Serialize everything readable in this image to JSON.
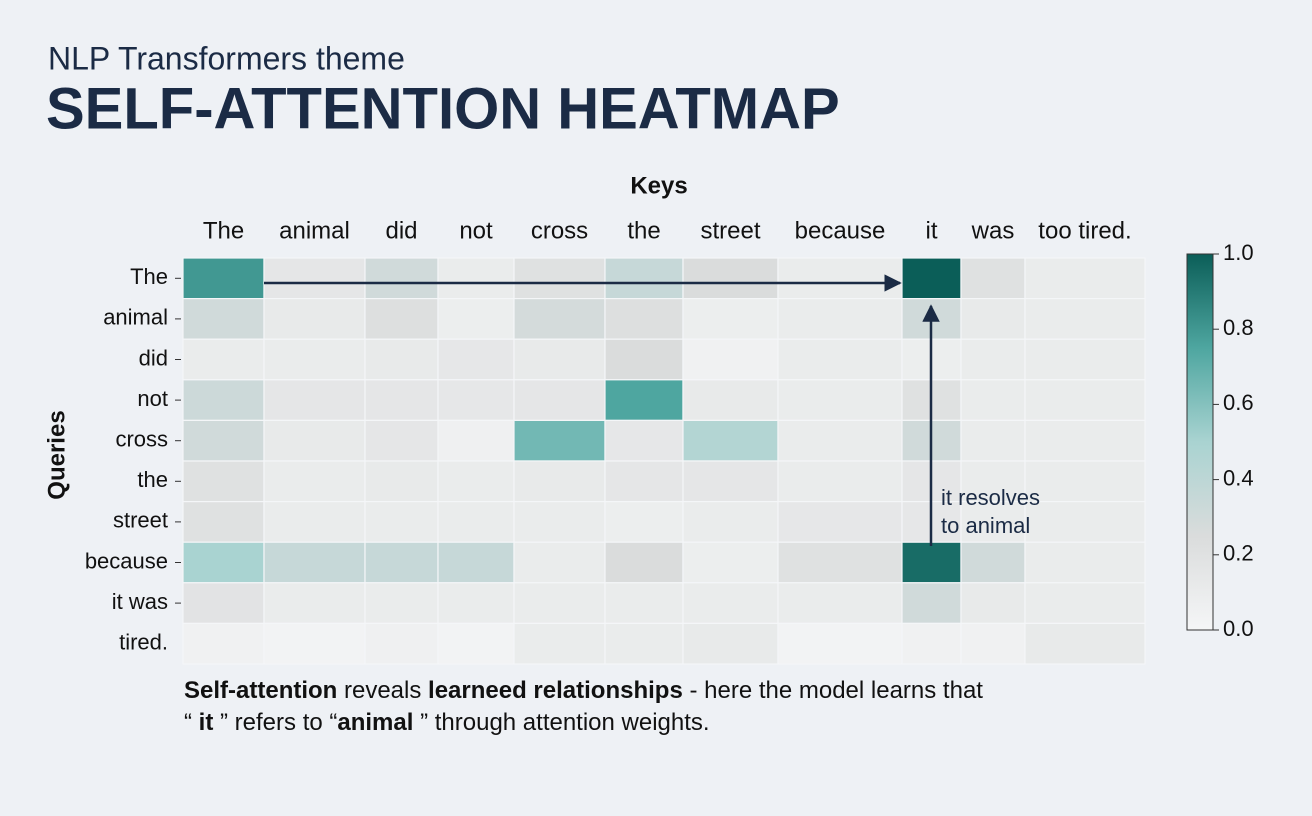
{
  "chart_data": {
    "type": "heatmap",
    "subtitle": "NLP Transformers theme",
    "title": "SELF-ATTENTION HEATMAP",
    "x_label": "Keys",
    "y_label": "Queries",
    "x_categories": [
      "The",
      "animal",
      "did",
      "not",
      "cross",
      "the",
      "street",
      "because",
      "it",
      "was",
      "too tired."
    ],
    "y_categories": [
      "The",
      "animal",
      "did",
      "not",
      "cross",
      "the",
      "street",
      "because",
      "it was",
      "tired."
    ],
    "values": [
      [
        0.8,
        0.15,
        0.3,
        0.1,
        0.2,
        0.35,
        0.25,
        0.1,
        1.0,
        0.2,
        0.1
      ],
      [
        0.3,
        0.12,
        0.22,
        0.08,
        0.28,
        0.22,
        0.08,
        0.1,
        0.3,
        0.12,
        0.1
      ],
      [
        0.1,
        0.1,
        0.12,
        0.14,
        0.12,
        0.25,
        0.05,
        0.1,
        0.08,
        0.1,
        0.1
      ],
      [
        0.32,
        0.15,
        0.15,
        0.14,
        0.15,
        0.75,
        0.12,
        0.1,
        0.2,
        0.1,
        0.1
      ],
      [
        0.3,
        0.12,
        0.15,
        0.06,
        0.65,
        0.14,
        0.45,
        0.1,
        0.3,
        0.1,
        0.1
      ],
      [
        0.2,
        0.1,
        0.12,
        0.1,
        0.12,
        0.15,
        0.15,
        0.1,
        0.15,
        0.1,
        0.1
      ],
      [
        0.2,
        0.1,
        0.1,
        0.1,
        0.1,
        0.08,
        0.1,
        0.14,
        0.14,
        0.1,
        0.1
      ],
      [
        0.5,
        0.35,
        0.35,
        0.35,
        0.1,
        0.25,
        0.08,
        0.2,
        0.95,
        0.3,
        0.1
      ],
      [
        0.18,
        0.1,
        0.1,
        0.1,
        0.1,
        0.1,
        0.1,
        0.1,
        0.3,
        0.12,
        0.1
      ],
      [
        0.05,
        0.03,
        0.06,
        0.03,
        0.1,
        0.1,
        0.12,
        0.03,
        0.05,
        0.05,
        0.12
      ]
    ],
    "colormap": [
      "#f5f6f7",
      "#dadcdc",
      "#a9d3d1",
      "#4ea6a0",
      "#0b5e58"
    ],
    "zlim": [
      0,
      1
    ],
    "zticks": [
      {
        "value": 0,
        "label": "0.0"
      },
      0.2,
      0.4,
      0.6,
      0.8,
      {
        "value": 1,
        "label": "1.0"
      }
    ],
    "annotation": [
      "it resolves",
      "to animal"
    ],
    "caption": [
      [
        {
          "text": "Self-attention",
          "bold": true
        },
        {
          "text": " reveals ",
          "bold": false
        },
        {
          "text": "learneed relationships",
          "bold": true
        },
        {
          "text": " - here the model learns that",
          "bold": false
        }
      ],
      [
        {
          "text": "“ ",
          "bold": false
        },
        {
          "text": "it",
          "bold": true
        },
        {
          "text": " ” refers to “",
          "bold": false
        },
        {
          "text": "animal",
          "bold": true
        },
        {
          "text": " ” through attention weights.",
          "bold": false
        }
      ]
    ]
  }
}
